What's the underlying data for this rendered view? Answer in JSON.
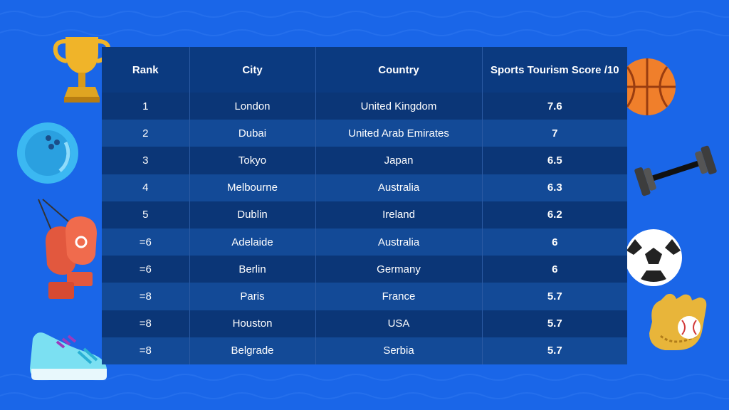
{
  "table": {
    "headers": [
      "Rank",
      "City",
      "Country",
      "Sports Tourism Score /10"
    ],
    "rows": [
      {
        "rank": "1",
        "city": "London",
        "country": "United Kingdom",
        "score": "7.6"
      },
      {
        "rank": "2",
        "city": "Dubai",
        "country": "United Arab Emirates",
        "score": "7"
      },
      {
        "rank": "3",
        "city": "Tokyo",
        "country": "Japan",
        "score": "6.5"
      },
      {
        "rank": "4",
        "city": "Melbourne",
        "country": "Australia",
        "score": "6.3"
      },
      {
        "rank": "5",
        "city": "Dublin",
        "country": "Ireland",
        "score": "6.2"
      },
      {
        "rank": "=6",
        "city": "Adelaide",
        "country": "Australia",
        "score": "6"
      },
      {
        "rank": "=6",
        "city": "Berlin",
        "country": "Germany",
        "score": "6"
      },
      {
        "rank": "=8",
        "city": "Paris",
        "country": "France",
        "score": "5.7"
      },
      {
        "rank": "=8",
        "city": "Houston",
        "country": "USA",
        "score": "5.7"
      },
      {
        "rank": "=8",
        "city": "Belgrade",
        "country": "Serbia",
        "score": "5.7"
      }
    ]
  },
  "decorations": {
    "left": [
      "trophy-icon",
      "bowling-ball-icon",
      "boxing-gloves-icon",
      "sneaker-icon"
    ],
    "right": [
      "basketball-icon",
      "dumbbell-icon",
      "soccer-ball-icon",
      "baseball-glove-icon"
    ]
  },
  "colors": {
    "background": "#1a66e8",
    "table_header": "#0b3a80",
    "row_dark": "#0b3677",
    "row_light": "#134a97"
  }
}
